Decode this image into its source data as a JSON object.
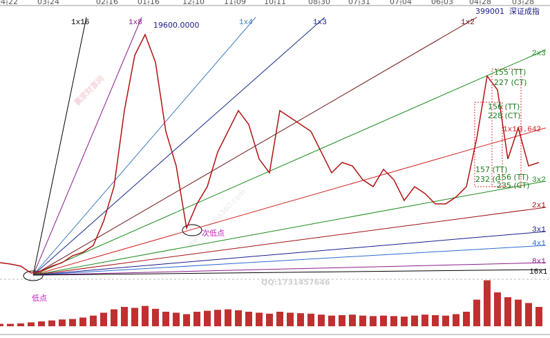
{
  "chart_data": {
    "type": "line",
    "code": "399001",
    "title": "深证成指",
    "date_labels": [
      "04-22",
      "03-24",
      "02-16",
      "01-16",
      "12-10",
      "11-09",
      "10-11",
      "08-30",
      "07-31",
      "07-04",
      "06-03",
      "04-28",
      "03-28"
    ],
    "values": [
      3438,
      3344,
      3204,
      2735,
      2875,
      3204,
      3438,
      3907,
      4142,
      4611,
      6252,
      8597,
      13756,
      17508,
      18915,
      17039,
      12349,
      10004,
      5783,
      7425,
      8597,
      10942,
      12349,
      13756,
      12818,
      10473,
      9535,
      13756,
      13287,
      12818,
      12349,
      10942,
      9535,
      10239,
      10004,
      9066,
      8597,
      9770,
      9066,
      7659,
      8597,
      8128,
      7425,
      7425,
      7894,
      8597,
      11880,
      16101,
      15163,
      10473,
      12584,
      10004,
      10239
    ],
    "color": "#b01010",
    "ylim": [
      2500,
      20700
    ],
    "volume": [
      5,
      5,
      6,
      8,
      10,
      12,
      14,
      15,
      18,
      22,
      28,
      35,
      40,
      38,
      42,
      36,
      30,
      28,
      25,
      30,
      32,
      34,
      35,
      33,
      30,
      28,
      26,
      30,
      28,
      27,
      26,
      24,
      22,
      23,
      24,
      22,
      21,
      22,
      21,
      20,
      22,
      24,
      23,
      22,
      25,
      30,
      55,
      95,
      70,
      60,
      55,
      48,
      40
    ],
    "volume_color": "#c03030",
    "volume_lim": [
      0,
      100
    ],
    "fan": [
      {
        "name": "1x16",
        "color": "#000000"
      },
      {
        "name": "1x8",
        "color": "#8a1a8a"
      },
      {
        "name": "1x4",
        "color": "#3a7abf"
      },
      {
        "name": "1x3",
        "color": "#1a2a8a"
      },
      {
        "name": "1x2",
        "color": "#6a1010"
      },
      {
        "name": "2x3",
        "color": "#1a8a1a"
      },
      {
        "name": "1x1",
        "color": "#d02020"
      },
      {
        "name": "3x2",
        "color": "#1a8a1a"
      },
      {
        "name": "2x1",
        "color": "#a01010"
      },
      {
        "name": "3x1",
        "color": "#1a1a8a"
      },
      {
        "name": "4x1",
        "color": "#2a6acf"
      },
      {
        "name": "8x1",
        "color": "#8a1a8a"
      },
      {
        "name": "16x1",
        "color": "#000000"
      }
    ],
    "peak_label": "19600.0000",
    "low_label": "低点",
    "second_low_label": "次低点",
    "qq": "QQ:1731457646",
    "watermark": "赢家财富网",
    "watermark_url": "www.yingjia360.com",
    "fan_note": "3.642",
    "marks": [
      "155 (TT)",
      "227 (CT)",
      "156 (TT)",
      "228 (CT)",
      "157 (TT)",
      "232 (C",
      "156 (TT)",
      "235 (CT)"
    ]
  }
}
